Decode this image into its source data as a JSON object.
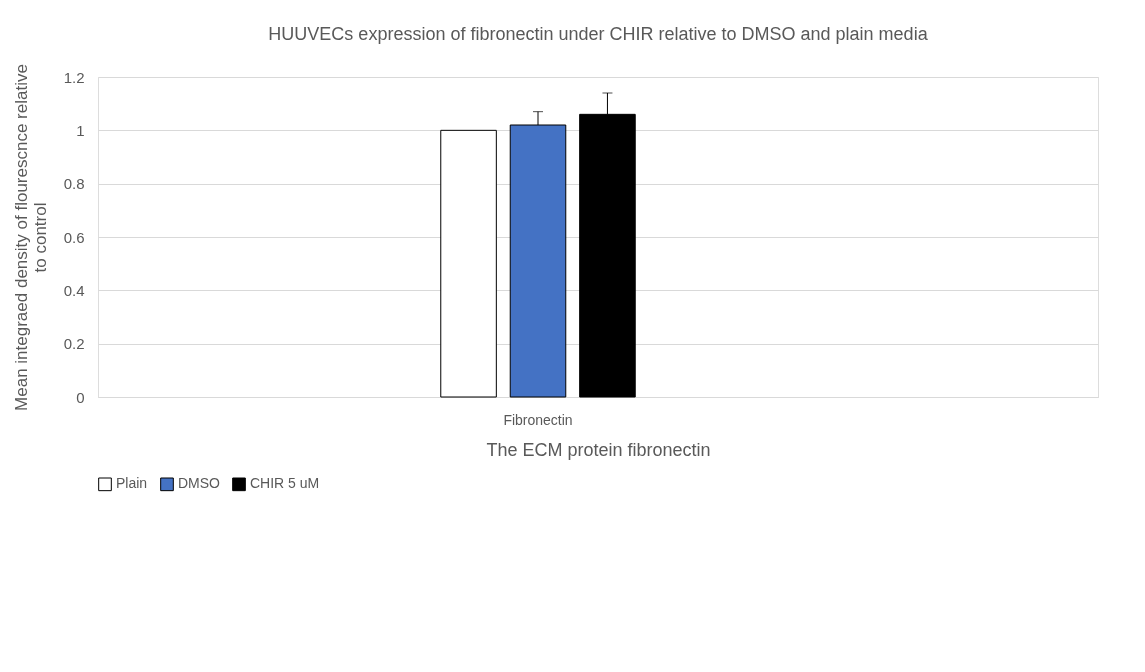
{
  "chart_data": {
    "type": "bar",
    "title": "HUUVECs expression of fibronectin under CHIR relative to DMSO and plain media",
    "xlabel": "The ECM protein fibronectin",
    "ylabel": "Mean integraed density of flourescnce relative to control",
    "categories": [
      "Fibronectin"
    ],
    "series": [
      {
        "name": "Plain",
        "color": "#ffffff",
        "values": [
          1.0
        ]
      },
      {
        "name": "DMSO",
        "color": "#4472c4",
        "values": [
          1.02
        ],
        "errors": [
          [
            1.02,
            1.07
          ]
        ]
      },
      {
        "name": "CHIR 5 uM",
        "color": "#000000",
        "values": [
          1.06
        ],
        "errors": [
          [
            1.06,
            1.14
          ]
        ]
      }
    ],
    "ylim": [
      0,
      1.2
    ],
    "yticks": [
      0,
      0.2,
      0.4,
      0.6,
      0.8,
      1,
      1.2
    ],
    "grid": "y",
    "legend": "bottom"
  }
}
